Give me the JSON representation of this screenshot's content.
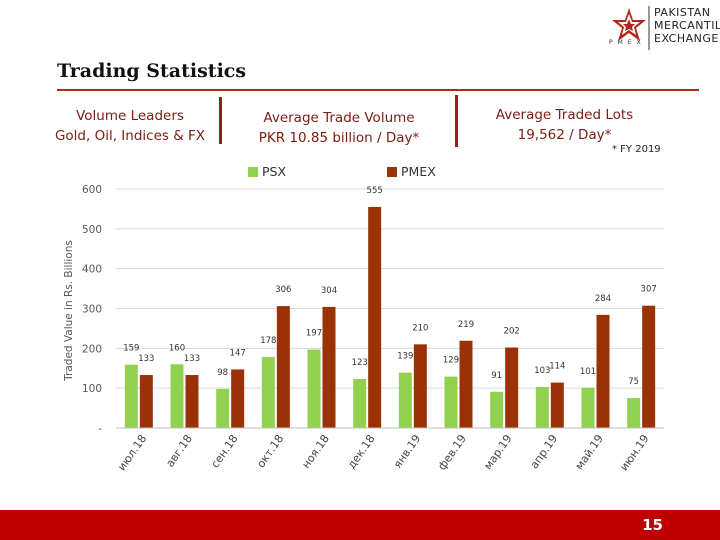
{
  "header": {
    "title": "Trading Statistics",
    "logo_lines": [
      "PAKISTAN",
      "MERCANTILE",
      "EXCHANGE"
    ],
    "logo_letters": "PMEX"
  },
  "stats": [
    {
      "line1": "Volume Leaders",
      "line2": "Gold, Oil, Indices & FX"
    },
    {
      "line1": "Average Trade Volume",
      "line2": "PKR 10.85 billion / Day*"
    },
    {
      "line1": "Average Traded Lots",
      "line2": "19,562 / Day*"
    }
  ],
  "footnote": "* FY 2019",
  "colors": {
    "psx": "#92d050",
    "pmex": "#9a3206",
    "accent": "#c00000"
  },
  "chart_data": {
    "type": "bar",
    "title": "",
    "ylabel": "Traded Value in Rs. Billions",
    "xlabel": "",
    "ylim": [
      0,
      600
    ],
    "yticks": [
      0,
      100,
      200,
      300,
      400,
      500,
      600
    ],
    "ytick_labels": [
      "-",
      "100",
      "200",
      "300",
      "400",
      "500",
      "600"
    ],
    "categories": [
      "июл.18",
      "авг.18",
      "сен.18",
      "окт.18",
      "ноя.18",
      "дек.18",
      "янв.19",
      "фев.19",
      "мар.19",
      "апр.19",
      "май.19",
      "июн.19"
    ],
    "series": [
      {
        "name": "PSX",
        "values": [
          159,
          160,
          98,
          178,
          197,
          123,
          139,
          129,
          91,
          103,
          101,
          75
        ]
      },
      {
        "name": "PMEX",
        "values": [
          133,
          133,
          147,
          306,
          304,
          555,
          210,
          219,
          202,
          114,
          284,
          307
        ]
      }
    ]
  },
  "footer": {
    "page_number": "15"
  }
}
